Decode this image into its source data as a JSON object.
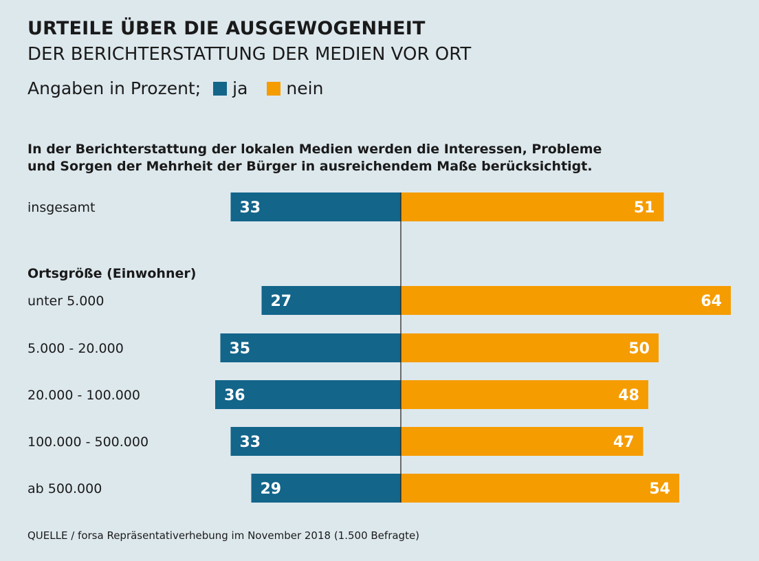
{
  "header": {
    "title": "URTEILE ÜBER DIE AUSGEWOGENHEIT",
    "subtitle": "DER BERICHTERSTATTUNG DER MEDIEN VOR ORT"
  },
  "legend": {
    "prefix": "Angaben in Prozent;",
    "items": [
      {
        "label": "ja",
        "color": "#13658a"
      },
      {
        "label": "nein",
        "color": "#f59c00"
      }
    ]
  },
  "question": {
    "line1": "In der Berichterstattung der lokalen Medien werden die Interessen, Probleme",
    "line2": "und Sorgen der Mehrheit der Bürger in ausreichendem Maße berücksichtigt."
  },
  "source": "QUELLE / forsa Repräsentativerhebung im November 2018 (1.500 Befragte)",
  "chart_data": {
    "type": "bar",
    "orientation": "horizontal-diverging",
    "series": [
      {
        "name": "ja",
        "color": "#13658a"
      },
      {
        "name": "nein",
        "color": "#f59c00"
      }
    ],
    "group_heading": "Ortsgröße (Einwohner)",
    "rows": [
      {
        "label": "insgesamt",
        "ja": 33,
        "nein": 51
      },
      {
        "label": "unter 5.000",
        "ja": 27,
        "nein": 64
      },
      {
        "label": "5.000 - 20.000",
        "ja": 35,
        "nein": 50
      },
      {
        "label": "20.000 - 100.000",
        "ja": 36,
        "nein": 48
      },
      {
        "label": "100.000 - 500.000",
        "ja": 33,
        "nein": 47
      },
      {
        "label": "ab 500.000",
        "ja": 29,
        "nein": 54
      }
    ]
  }
}
